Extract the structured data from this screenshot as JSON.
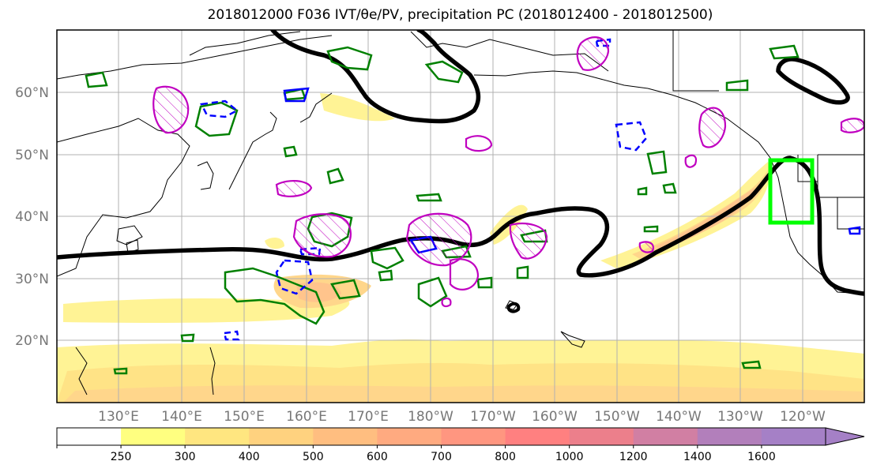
{
  "title": "2018012000 F036 IVT/θe/PV, precipitation PC (2018012400 - 2018012500)",
  "map": {
    "lat_labels": [
      "60°N",
      "50°N",
      "40°N",
      "30°N",
      "20°N"
    ],
    "lon_labels": [
      "130°E",
      "140°E",
      "150°E",
      "160°E",
      "170°E",
      "180°W",
      "170°W",
      "160°W",
      "150°W",
      "140°W",
      "130°W",
      "120°W"
    ],
    "colors": {
      "theta_e_contour": "#000000",
      "pv_contour": "#008000",
      "neg_contour": "#0000ff",
      "precip_contour": "#c000c0",
      "target_box": "#00ff00"
    }
  },
  "colorbar": {
    "ticks": [
      "250",
      "300",
      "400",
      "500",
      "600",
      "700",
      "800",
      "1000",
      "1200",
      "1400",
      "1600"
    ],
    "colors": [
      "#ffffff",
      "#ffff80",
      "#ffe680",
      "#ffd27f",
      "#ffbe80",
      "#ffaa80",
      "#ff9680",
      "#ff8080",
      "#ec7f8b",
      "#d17fa3",
      "#b27fbb",
      "#a580c6"
    ]
  }
}
